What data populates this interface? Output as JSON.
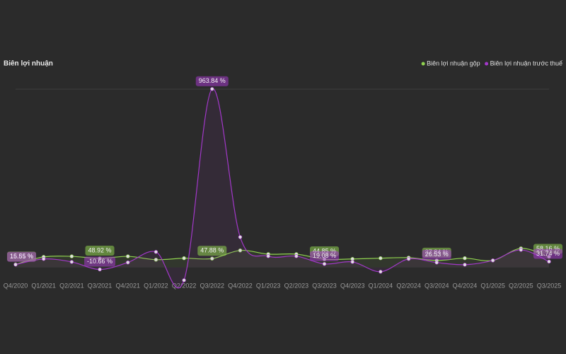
{
  "chart_data": {
    "type": "line",
    "title": "Biên lợi nhuận",
    "categories": [
      "Q4/2020",
      "Q1/2021",
      "Q2/2021",
      "Q3/2021",
      "Q4/2021",
      "Q1/2022",
      "Q2/2022",
      "Q3/2022",
      "Q4/2022",
      "Q1/2023",
      "Q2/2023",
      "Q3/2023",
      "Q4/2023",
      "Q1/2024",
      "Q2/2024",
      "Q3/2024",
      "Q4/2024",
      "Q1/2025",
      "Q2/2025",
      "Q3/2025"
    ],
    "series": [
      {
        "name": "Biên lợi nhuận gộp",
        "color": "#8fd14f",
        "values": [
          16.81,
          57,
          60,
          48.92,
          60,
          42,
          50,
          47.88,
          92,
          72,
          72,
          44.85,
          46,
          50,
          53,
          37.84,
          50,
          38,
          103,
          58.16
        ],
        "value_labels": [
          "16.81 %",
          null,
          null,
          "48.92 %",
          null,
          null,
          null,
          "47.88 %",
          null,
          null,
          null,
          "44.85 %",
          null,
          null,
          null,
          "37.84 %",
          null,
          null,
          null,
          "58.16 %"
        ]
      },
      {
        "name": "Biên lợi nhuận trước thuế",
        "color": "#a238c9",
        "values": [
          15.55,
          46,
          30,
          -10.66,
          27,
          84,
          -69,
          963.84,
          164,
          61,
          61,
          19.08,
          30,
          -23,
          46,
          26.53,
          15,
          38,
          95,
          31.74
        ],
        "value_labels": [
          "15.55 %",
          null,
          null,
          "-10.66 %",
          null,
          null,
          null,
          "963.84 %",
          null,
          null,
          null,
          "19.08 %",
          null,
          null,
          null,
          "26.53 %",
          null,
          null,
          null,
          "31.74 %"
        ]
      }
    ],
    "ylim": [
      -85,
      1043
    ],
    "legend": "top-right"
  }
}
